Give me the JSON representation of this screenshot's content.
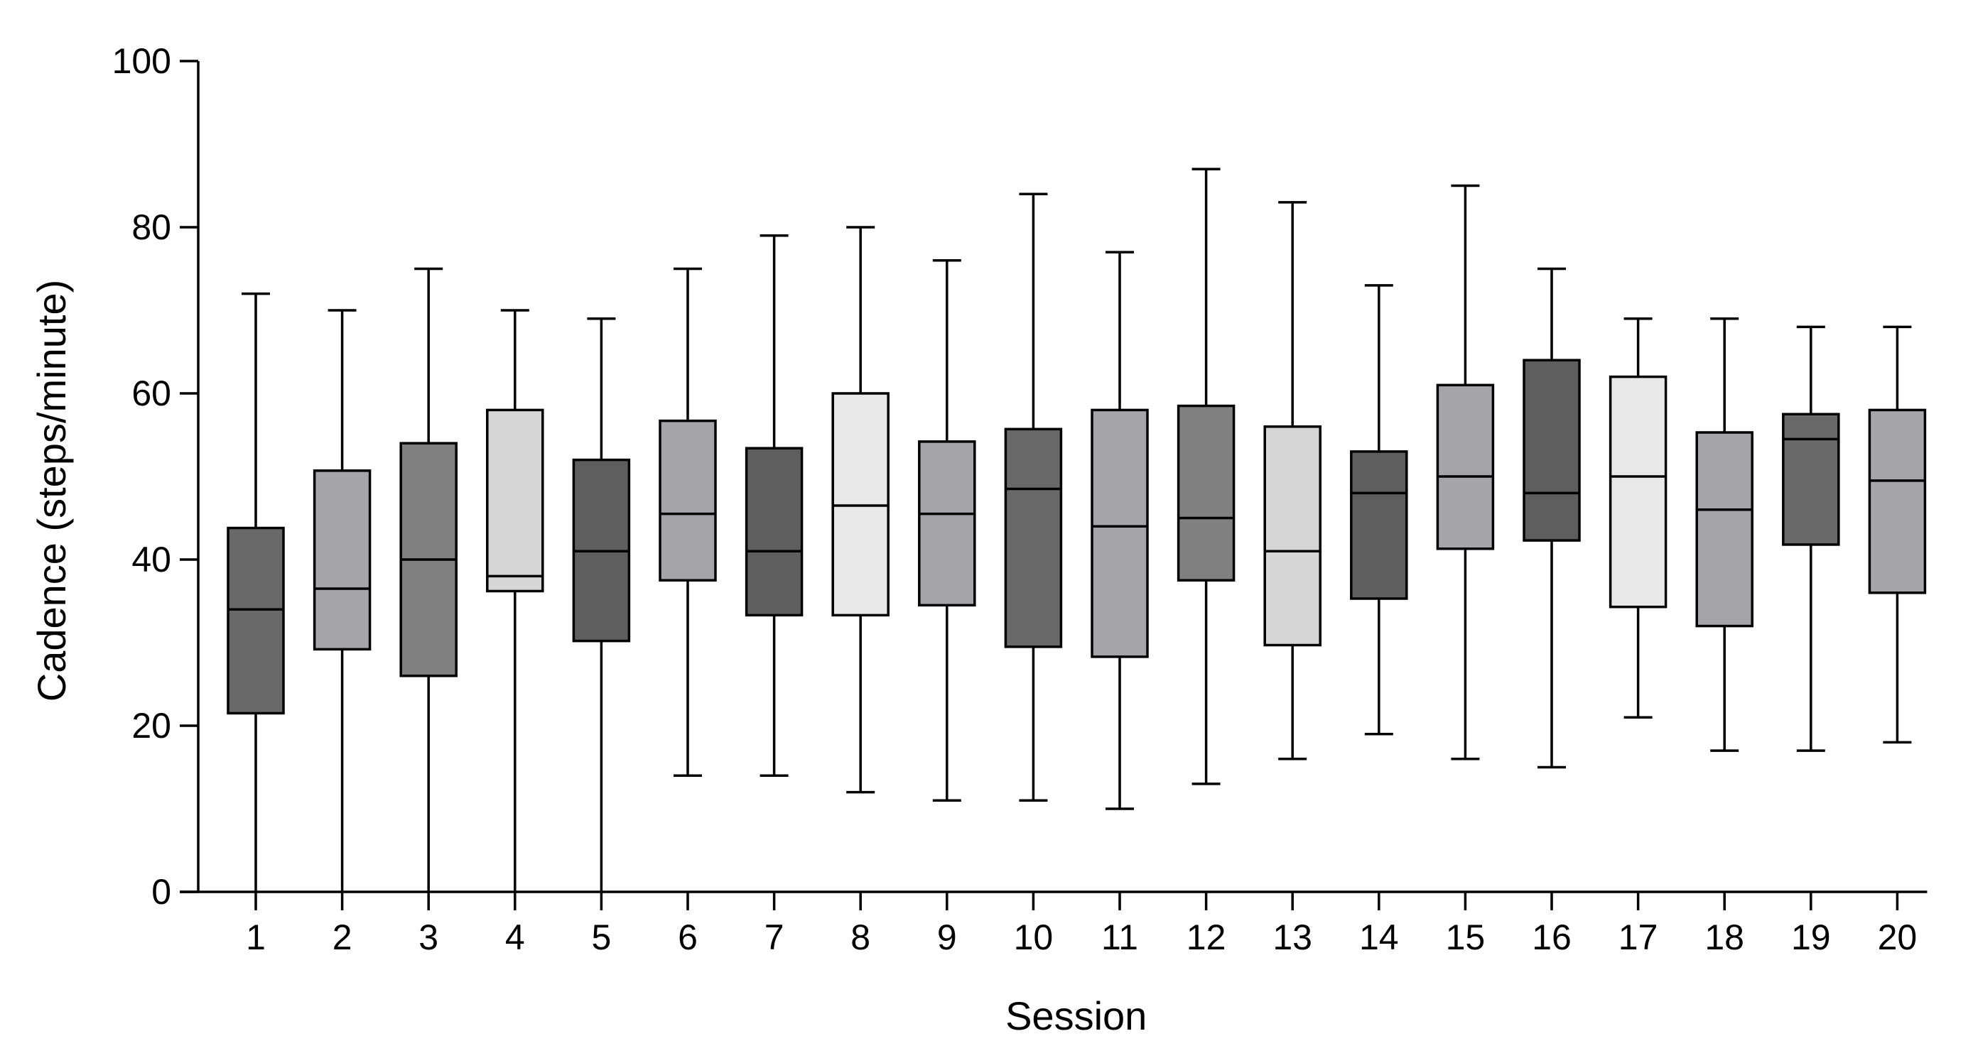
{
  "chart_data": {
    "type": "box",
    "title": "",
    "xlabel": "Session",
    "ylabel": "Cadence (steps/minute)",
    "ylim": [
      0,
      100
    ],
    "yticks": [
      0,
      20,
      40,
      60,
      80,
      100
    ],
    "ytick_labels": [
      "0",
      "20",
      "40",
      "60",
      "80",
      "100"
    ],
    "grid": false,
    "legend": "none",
    "categories": [
      "1",
      "2",
      "3",
      "4",
      "5",
      "6",
      "7",
      "8",
      "9",
      "10",
      "11",
      "12",
      "13",
      "14",
      "15",
      "16",
      "17",
      "18",
      "19",
      "20"
    ],
    "boxes": [
      {
        "session": "1",
        "min": 0,
        "q1": 21.5,
        "median": 34,
        "q3": 43.8,
        "max": 72,
        "color": "#696969"
      },
      {
        "session": "2",
        "min": 0,
        "q1": 29.2,
        "median": 36.5,
        "q3": 50.7,
        "max": 70,
        "color": "#a4a4a9"
      },
      {
        "session": "3",
        "min": 0,
        "q1": 26,
        "median": 40,
        "q3": 54,
        "max": 75,
        "color": "#808080"
      },
      {
        "session": "4",
        "min": 0,
        "q1": 36.2,
        "median": 38,
        "q3": 58,
        "max": 70,
        "color": "#d6d6d6"
      },
      {
        "session": "5",
        "min": 0,
        "q1": 30.2,
        "median": 41,
        "q3": 52,
        "max": 69,
        "color": "#5e5e5e"
      },
      {
        "session": "6",
        "min": 14,
        "q1": 37.5,
        "median": 45.5,
        "q3": 56.7,
        "max": 75,
        "color": "#a4a4a9"
      },
      {
        "session": "7",
        "min": 14,
        "q1": 33.3,
        "median": 41,
        "q3": 53.4,
        "max": 79,
        "color": "#5e5e5e"
      },
      {
        "session": "8",
        "min": 12,
        "q1": 33.3,
        "median": 46.5,
        "q3": 60,
        "max": 80,
        "color": "#e8e8e8"
      },
      {
        "session": "9",
        "min": 11,
        "q1": 34.5,
        "median": 45.5,
        "q3": 54.2,
        "max": 76,
        "color": "#a4a4a9"
      },
      {
        "session": "10",
        "min": 11,
        "q1": 29.5,
        "median": 48.5,
        "q3": 55.7,
        "max": 84,
        "color": "#696969"
      },
      {
        "session": "11",
        "min": 10,
        "q1": 28.3,
        "median": 44,
        "q3": 58,
        "max": 77,
        "color": "#a4a4a9"
      },
      {
        "session": "12",
        "min": 13,
        "q1": 37.5,
        "median": 45,
        "q3": 58.5,
        "max": 87,
        "color": "#808080"
      },
      {
        "session": "13",
        "min": 16,
        "q1": 29.7,
        "median": 41,
        "q3": 56,
        "max": 83,
        "color": "#d6d6d6"
      },
      {
        "session": "14",
        "min": 19,
        "q1": 35.3,
        "median": 48,
        "q3": 53,
        "max": 73,
        "color": "#5e5e5e"
      },
      {
        "session": "15",
        "min": 16,
        "q1": 41.3,
        "median": 50,
        "q3": 61,
        "max": 85,
        "color": "#a4a4a9"
      },
      {
        "session": "16",
        "min": 15,
        "q1": 42.3,
        "median": 48,
        "q3": 64,
        "max": 75,
        "color": "#5e5e5e"
      },
      {
        "session": "17",
        "min": 21,
        "q1": 34.3,
        "median": 50,
        "q3": 62,
        "max": 69,
        "color": "#e8e8e8"
      },
      {
        "session": "18",
        "min": 17,
        "q1": 32,
        "median": 46,
        "q3": 55.3,
        "max": 69,
        "color": "#a4a4a9"
      },
      {
        "session": "19",
        "min": 17,
        "q1": 41.8,
        "median": 54.5,
        "q3": 57.5,
        "max": 68,
        "color": "#696969"
      },
      {
        "session": "20",
        "min": 18,
        "q1": 36,
        "median": 49.5,
        "q3": 58,
        "max": 68,
        "color": "#a4a4a9"
      }
    ]
  }
}
